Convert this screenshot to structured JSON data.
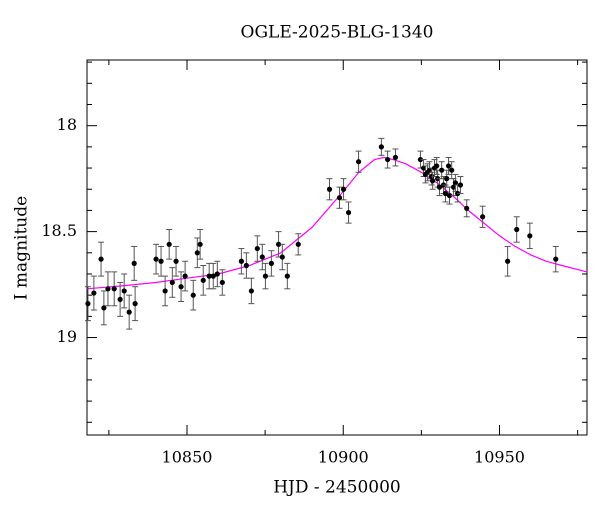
{
  "chart_data": {
    "type": "scatter",
    "title": "OGLE-2025-BLG-1340",
    "x_label": "HJD - 2450000",
    "y_label": "I magnitude",
    "xlim": [
      10818,
      10978
    ],
    "ylim": [
      19.46,
      17.69
    ],
    "xticks": [
      10850,
      10900,
      10950
    ],
    "xticks_minor": [
      10825,
      10875,
      10925,
      10975
    ],
    "yticks": [
      18,
      18.5,
      19
    ],
    "yticks_minor": [
      17.7,
      17.8,
      17.9,
      18.1,
      18.2,
      18.3,
      18.4,
      18.6,
      18.7,
      18.8,
      18.9,
      19.1,
      19.2,
      19.3,
      19.4
    ],
    "color": "#000000",
    "x": [
      10818.3,
      10820.2,
      10822.5,
      10823.4,
      10824.7,
      10826.7,
      10828.6,
      10829.9,
      10831.5,
      10833.1,
      10833.4,
      10840.1,
      10841.7,
      10843.0,
      10844.3,
      10845.3,
      10846.5,
      10848.1,
      10849.4,
      10852.0,
      10853.3,
      10854.2,
      10855.2,
      10857.1,
      10858.4,
      10859.7,
      10861.3,
      10867.4,
      10869.0,
      10870.6,
      10872.5,
      10874.1,
      10875.1,
      10877.0,
      10879.3,
      10880.5,
      10882.1,
      10885.6,
      10895.6,
      10898.8,
      10900.1,
      10901.7,
      10904.9,
      10912.2,
      10914.2,
      10916.7,
      10924.7,
      10925.7,
      10926.3,
      10927.0,
      10927.6,
      10928.3,
      10928.6,
      10929.2,
      10929.9,
      10930.2,
      10930.8,
      10931.5,
      10932.1,
      10932.7,
      10933.1,
      10933.7,
      10934.0,
      10934.7,
      10935.3,
      10935.9,
      10936.6,
      10937.5,
      10939.5,
      10944.6,
      10952.6,
      10955.5,
      10959.7,
      10968.0
    ],
    "values": [
      18.84,
      18.79,
      18.63,
      18.86,
      18.77,
      18.77,
      18.82,
      18.78,
      18.88,
      18.65,
      18.84,
      18.63,
      18.64,
      18.78,
      18.56,
      18.74,
      18.64,
      18.76,
      18.71,
      18.8,
      18.6,
      18.56,
      18.73,
      18.71,
      18.71,
      18.7,
      18.74,
      18.64,
      18.66,
      18.78,
      18.58,
      18.62,
      18.71,
      18.65,
      18.56,
      18.62,
      18.71,
      18.56,
      18.3,
      18.34,
      18.3,
      18.41,
      18.17,
      18.1,
      18.16,
      18.15,
      18.16,
      18.2,
      18.23,
      18.22,
      18.21,
      18.24,
      18.26,
      18.2,
      18.19,
      18.25,
      18.29,
      18.21,
      18.28,
      18.32,
      18.25,
      18.19,
      18.33,
      18.21,
      18.29,
      18.27,
      18.32,
      18.28,
      18.39,
      18.43,
      18.64,
      18.49,
      18.52,
      18.63
    ],
    "errors": [
      0.08,
      0.08,
      0.08,
      0.08,
      0.08,
      0.08,
      0.08,
      0.08,
      0.08,
      0.08,
      0.08,
      0.07,
      0.07,
      0.07,
      0.07,
      0.07,
      0.07,
      0.07,
      0.07,
      0.07,
      0.07,
      0.07,
      0.07,
      0.06,
      0.06,
      0.06,
      0.06,
      0.06,
      0.06,
      0.06,
      0.06,
      0.06,
      0.06,
      0.06,
      0.06,
      0.06,
      0.06,
      0.05,
      0.05,
      0.05,
      0.05,
      0.05,
      0.05,
      0.04,
      0.04,
      0.04,
      0.04,
      0.04,
      0.04,
      0.04,
      0.04,
      0.04,
      0.04,
      0.04,
      0.04,
      0.04,
      0.04,
      0.04,
      0.04,
      0.04,
      0.04,
      0.04,
      0.04,
      0.04,
      0.04,
      0.04,
      0.04,
      0.04,
      0.04,
      0.05,
      0.07,
      0.06,
      0.06,
      0.06
    ],
    "model": {
      "color": "#ff00ff",
      "x": [
        10818,
        10830,
        10840,
        10850,
        10860,
        10870,
        10880,
        10890,
        10900,
        10905,
        10910,
        10913,
        10916,
        10920,
        10925,
        10930,
        10935,
        10940,
        10945,
        10950,
        10955,
        10960,
        10965,
        10970,
        10978
      ],
      "values": [
        18.77,
        18.755,
        18.74,
        18.72,
        18.7,
        18.66,
        18.6,
        18.48,
        18.31,
        18.22,
        18.16,
        18.15,
        18.16,
        18.18,
        18.22,
        18.27,
        18.33,
        18.4,
        18.46,
        18.52,
        18.57,
        18.61,
        18.64,
        18.66,
        18.69
      ]
    }
  }
}
